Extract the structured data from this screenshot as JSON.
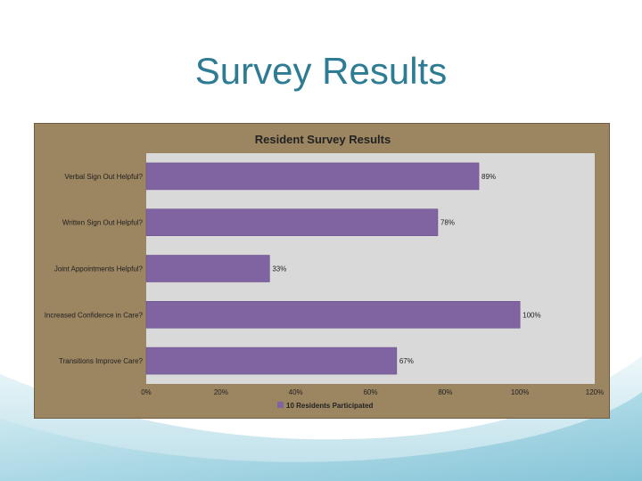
{
  "slide": {
    "title": "Survey Results",
    "accent_color": "#2e7c93"
  },
  "chart_data": {
    "type": "bar",
    "orientation": "horizontal",
    "title": "Resident Survey Results",
    "categories": [
      "Verbal Sign Out Helpful?",
      "Written Sign Out Helpful?",
      "Joint Appointments Helpful?",
      "Increased Confidence in Care?",
      "Transitions Improve Care?"
    ],
    "series": [
      {
        "name": "10 Residents Participated",
        "values": [
          89,
          78,
          33,
          100,
          67
        ],
        "color": "#8064a2"
      }
    ],
    "data_labels": [
      "89%",
      "78%",
      "33%",
      "100%",
      "67%"
    ],
    "x_ticks": [
      "0%",
      "20%",
      "40%",
      "60%",
      "80%",
      "100%",
      "120%"
    ],
    "xlim": [
      0,
      120
    ],
    "legend_position": "bottom",
    "plot_background": "#d9d9d9",
    "frame_background": "#9c8561"
  }
}
